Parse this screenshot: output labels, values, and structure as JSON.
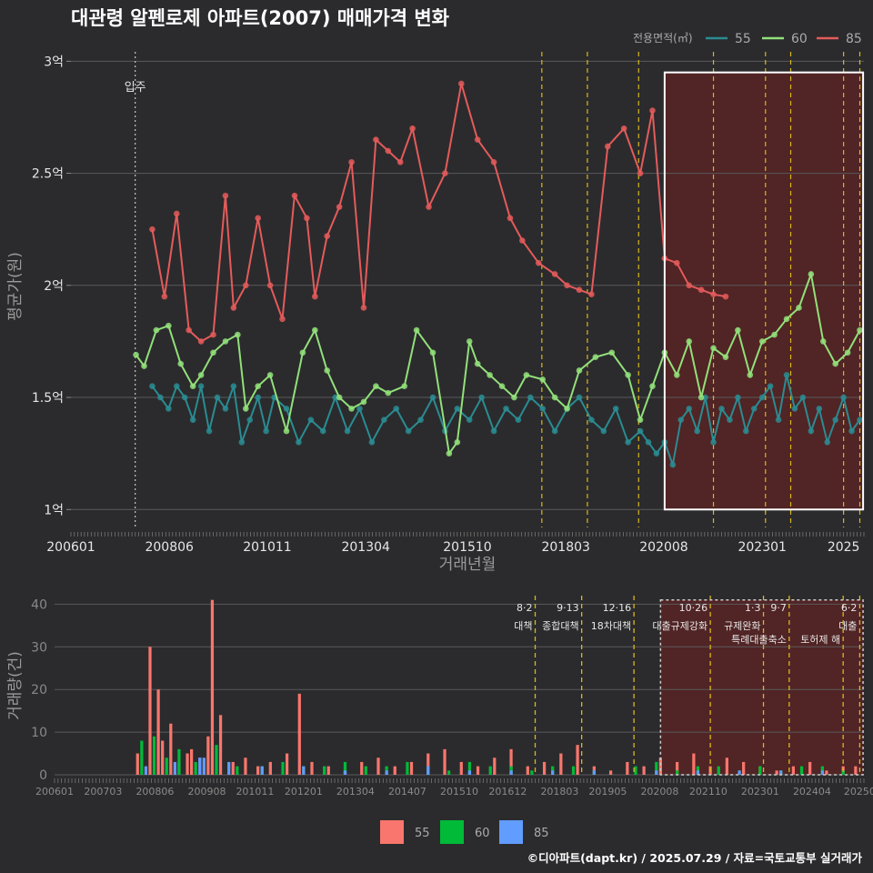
{
  "colors": {
    "bg": "#2b2b2d",
    "grid": "#5a5a5c",
    "s55": "#2a8c92",
    "s60": "#92e07a",
    "s85": "#e45b5b",
    "bar55": "#f8766d",
    "bar60": "#00ba38",
    "bar85": "#619cff",
    "policy": "#d8b81e",
    "shade": "#6b2020"
  },
  "header": {
    "title": "대관령 알펜로제 아파트(2007) 매매가격 변화"
  },
  "top_legend": {
    "title": "전용면적(㎡)",
    "items": [
      {
        "label": "55",
        "color": "#2a8c92"
      },
      {
        "label": "60",
        "color": "#92e07a"
      },
      {
        "label": "85",
        "color": "#e45b5b"
      }
    ]
  },
  "bottom_legend": {
    "items": [
      {
        "label": "55",
        "color": "#f8766d"
      },
      {
        "label": "60",
        "color": "#00ba38"
      },
      {
        "label": "85",
        "color": "#619cff"
      }
    ]
  },
  "footer": {
    "text": "©디아파트(dapt.kr) / 2025.07.29 / 자료=국토교통부 실거래가"
  },
  "chart_data": [
    {
      "type": "line",
      "title": "대관령 알펜로제 아파트(2007) 매매가격 변화",
      "xlabel": "거래년월",
      "ylabel": "평균가(원)",
      "x_range": [
        2006.0,
        2025.5
      ],
      "ylim": [
        0.92,
        3.05
      ],
      "y_unit": "억",
      "yticks": [
        {
          "v": 1,
          "label": "1억"
        },
        {
          "v": 1.5,
          "label": "1.5억"
        },
        {
          "v": 2,
          "label": "2억"
        },
        {
          "v": 2.5,
          "label": "2.5억"
        },
        {
          "v": 3,
          "label": "3억"
        }
      ],
      "xticks": [
        {
          "v": 2006.0,
          "label": "200601"
        },
        {
          "v": 2008.42,
          "label": "200806"
        },
        {
          "v": 2010.83,
          "label": "201011"
        },
        {
          "v": 2013.25,
          "label": "201304"
        },
        {
          "v": 2015.75,
          "label": "201510"
        },
        {
          "v": 2018.17,
          "label": "201803"
        },
        {
          "v": 2020.58,
          "label": "202008"
        },
        {
          "v": 2023.0,
          "label": "202301"
        },
        {
          "v": 2025.0,
          "label": "2025"
        }
      ],
      "move_in": {
        "x": 2007.58,
        "label": "입주"
      },
      "policy_lines": [
        2017.58,
        2018.7,
        2019.96,
        2021.8,
        2023.08,
        2023.7,
        2025.0,
        2025.4
      ],
      "highlight": {
        "x0": 2020.6,
        "x1": 2025.48,
        "y0": 1.0,
        "y1": 2.95
      },
      "series": [
        {
          "name": "55",
          "x": [
            2008.0,
            2008.2,
            2008.4,
            2008.6,
            2008.8,
            2009.0,
            2009.2,
            2009.4,
            2009.6,
            2009.8,
            2010.0,
            2010.2,
            2010.4,
            2010.6,
            2010.8,
            2011.0,
            2011.3,
            2011.6,
            2011.9,
            2012.2,
            2012.5,
            2012.8,
            2013.1,
            2013.4,
            2013.7,
            2014.0,
            2014.3,
            2014.6,
            2014.9,
            2015.2,
            2015.5,
            2015.8,
            2016.1,
            2016.4,
            2016.7,
            2017.0,
            2017.3,
            2017.6,
            2017.9,
            2018.2,
            2018.5,
            2018.8,
            2019.1,
            2019.4,
            2019.7,
            2020.0,
            2020.2,
            2020.4,
            2020.6,
            2020.8,
            2021.0,
            2021.2,
            2021.4,
            2021.6,
            2021.8,
            2022.0,
            2022.2,
            2022.4,
            2022.6,
            2022.8,
            2023.0,
            2023.2,
            2023.4,
            2023.6,
            2023.8,
            2024.0,
            2024.2,
            2024.4,
            2024.6,
            2024.8,
            2025.0,
            2025.2,
            2025.4
          ],
          "values": [
            1.55,
            1.5,
            1.45,
            1.55,
            1.5,
            1.4,
            1.55,
            1.35,
            1.5,
            1.45,
            1.55,
            1.3,
            1.4,
            1.5,
            1.35,
            1.5,
            1.45,
            1.3,
            1.4,
            1.35,
            1.5,
            1.35,
            1.45,
            1.3,
            1.4,
            1.45,
            1.35,
            1.4,
            1.5,
            1.35,
            1.45,
            1.4,
            1.5,
            1.35,
            1.45,
            1.4,
            1.5,
            1.45,
            1.35,
            1.45,
            1.5,
            1.4,
            1.35,
            1.45,
            1.3,
            1.35,
            1.3,
            1.25,
            1.3,
            1.2,
            1.4,
            1.45,
            1.35,
            1.5,
            1.3,
            1.45,
            1.4,
            1.5,
            1.35,
            1.45,
            1.5,
            1.55,
            1.4,
            1.6,
            1.45,
            1.5,
            1.35,
            1.45,
            1.3,
            1.4,
            1.5,
            1.35,
            1.4
          ]
        },
        {
          "name": "60",
          "x": [
            2007.6,
            2007.8,
            2008.1,
            2008.4,
            2008.7,
            2009.0,
            2009.2,
            2009.5,
            2009.8,
            2010.1,
            2010.3,
            2010.6,
            2010.9,
            2011.3,
            2011.7,
            2012.0,
            2012.3,
            2012.6,
            2012.9,
            2013.2,
            2013.5,
            2013.8,
            2014.2,
            2014.5,
            2014.9,
            2015.3,
            2015.5,
            2015.8,
            2016.0,
            2016.3,
            2016.6,
            2016.9,
            2017.2,
            2017.6,
            2017.9,
            2018.2,
            2018.5,
            2018.9,
            2019.3,
            2019.7,
            2020.0,
            2020.3,
            2020.6,
            2020.9,
            2021.2,
            2021.5,
            2021.8,
            2022.1,
            2022.4,
            2022.7,
            2023.0,
            2023.3,
            2023.6,
            2023.9,
            2024.2,
            2024.5,
            2024.8,
            2025.1,
            2025.4
          ],
          "values": [
            1.69,
            1.64,
            1.8,
            1.82,
            1.65,
            1.55,
            1.6,
            1.7,
            1.75,
            1.78,
            1.45,
            1.55,
            1.6,
            1.35,
            1.7,
            1.8,
            1.62,
            1.5,
            1.45,
            1.48,
            1.55,
            1.52,
            1.55,
            1.8,
            1.7,
            1.25,
            1.3,
            1.75,
            1.65,
            1.6,
            1.55,
            1.5,
            1.6,
            1.58,
            1.5,
            1.45,
            1.62,
            1.68,
            1.7,
            1.6,
            1.4,
            1.55,
            1.7,
            1.6,
            1.75,
            1.5,
            1.72,
            1.68,
            1.8,
            1.6,
            1.75,
            1.78,
            1.85,
            1.9,
            2.05,
            1.75,
            1.65,
            1.7,
            1.8
          ]
        },
        {
          "name": "85",
          "x": [
            2008.0,
            2008.3,
            2008.6,
            2008.9,
            2009.2,
            2009.5,
            2009.8,
            2010.0,
            2010.3,
            2010.6,
            2010.9,
            2011.2,
            2011.5,
            2011.8,
            2012.0,
            2012.3,
            2012.6,
            2012.9,
            2013.2,
            2013.5,
            2013.8,
            2014.1,
            2014.4,
            2014.8,
            2015.2,
            2015.6,
            2016.0,
            2016.4,
            2016.8,
            2017.1,
            2017.5,
            2017.9,
            2018.2,
            2018.5,
            2018.8,
            2019.2,
            2019.6,
            2020.0,
            2020.3,
            2020.6,
            2020.9,
            2021.2,
            2021.5,
            2021.8,
            2022.1
          ],
          "values": [
            2.25,
            1.95,
            2.32,
            1.8,
            1.75,
            1.78,
            2.4,
            1.9,
            2.0,
            2.3,
            2.0,
            1.85,
            2.4,
            2.3,
            1.95,
            2.22,
            2.35,
            2.55,
            1.9,
            2.65,
            2.6,
            2.55,
            2.7,
            2.35,
            2.5,
            2.9,
            2.65,
            2.55,
            2.3,
            2.2,
            2.1,
            2.05,
            2.0,
            1.98,
            1.96,
            2.62,
            2.7,
            2.5,
            2.78,
            2.12,
            2.1,
            2.0,
            1.98,
            1.96,
            1.95
          ]
        }
      ]
    },
    {
      "type": "bar",
      "xlabel": "",
      "ylabel": "거래량(건)",
      "x_range": [
        2006.0,
        2025.5
      ],
      "ylim": [
        0,
        42
      ],
      "yticks": [
        0,
        10,
        20,
        30,
        40
      ],
      "xticks": [
        {
          "v": 2006.0,
          "label": "200601"
        },
        {
          "v": 2007.17,
          "label": "200703"
        },
        {
          "v": 2008.42,
          "label": "200806"
        },
        {
          "v": 2009.67,
          "label": "200908"
        },
        {
          "v": 2010.83,
          "label": "201011"
        },
        {
          "v": 2012.0,
          "label": "201201"
        },
        {
          "v": 2013.25,
          "label": "201304"
        },
        {
          "v": 2014.5,
          "label": "201407"
        },
        {
          "v": 2015.75,
          "label": "201510"
        },
        {
          "v": 2016.92,
          "label": "201612"
        },
        {
          "v": 2018.17,
          "label": "201803"
        },
        {
          "v": 2019.33,
          "label": "201905"
        },
        {
          "v": 2020.58,
          "label": "202008"
        },
        {
          "v": 2021.75,
          "label": "202110"
        },
        {
          "v": 2023.0,
          "label": "202301"
        },
        {
          "v": 2024.25,
          "label": "202404"
        },
        {
          "v": 2025.4,
          "label": "20250"
        }
      ],
      "highlight": {
        "x0": 2020.6,
        "x1": 2025.48
      },
      "policies": [
        {
          "x": 2017.58,
          "date": "8·2",
          "name": "대책"
        },
        {
          "x": 2018.7,
          "date": "9·13",
          "name": "종합대책"
        },
        {
          "x": 2019.96,
          "date": "12·16",
          "name": "18차대책"
        },
        {
          "x": 2021.8,
          "date": "10·26",
          "name": "대출규제강화"
        },
        {
          "x": 2023.08,
          "date": "1·3",
          "name": "규제완화"
        },
        {
          "x": 2023.7,
          "date": "9·7",
          "name": "특례대출축소"
        },
        {
          "x": 2025.0,
          "date": "",
          "name": "토허제 해"
        },
        {
          "x": 2025.4,
          "date": "6·2",
          "name": "대출"
        }
      ],
      "series": [
        {
          "name": "55",
          "x": [
            2008.0,
            2008.3,
            2008.5,
            2008.6,
            2008.8,
            2009.0,
            2009.2,
            2009.3,
            2009.5,
            2009.7,
            2009.8,
            2010.0,
            2010.3,
            2010.6,
            2010.9,
            2011.2,
            2011.6,
            2011.9,
            2012.2,
            2012.6,
            2013.0,
            2013.4,
            2013.8,
            2014.2,
            2014.6,
            2015.0,
            2015.4,
            2015.8,
            2016.2,
            2016.6,
            2017.0,
            2017.4,
            2017.8,
            2018.2,
            2018.6,
            2019.0,
            2019.4,
            2019.8,
            2020.2,
            2020.6,
            2021.0,
            2021.4,
            2021.8,
            2022.2,
            2022.6,
            2023.0,
            2023.4,
            2023.8,
            2024.2,
            2024.6,
            2025.0,
            2025.3
          ],
          "values": [
            5,
            30,
            20,
            8,
            12,
            3,
            5,
            6,
            4,
            9,
            41,
            14,
            3,
            4,
            2,
            3,
            5,
            19,
            3,
            2,
            1,
            3,
            4,
            2,
            3,
            5,
            6,
            3,
            2,
            4,
            6,
            2,
            3,
            5,
            7,
            2,
            1,
            3,
            2,
            4,
            3,
            5,
            2,
            4,
            3,
            2,
            1,
            2,
            3,
            1,
            2,
            2
          ]
        },
        {
          "name": "60",
          "x": [
            2008.1,
            2008.4,
            2008.7,
            2009.0,
            2009.4,
            2009.9,
            2010.4,
            2011.0,
            2011.5,
            2012.0,
            2012.5,
            2013.0,
            2013.5,
            2014.0,
            2014.5,
            2015.0,
            2015.5,
            2016.0,
            2016.5,
            2017.0,
            2017.5,
            2018.0,
            2018.5,
            2019.0,
            2020.0,
            2020.5,
            2021.0,
            2021.5,
            2022.0,
            2022.5,
            2023.0,
            2023.5,
            2024.0,
            2024.5,
            2025.0
          ],
          "values": [
            8,
            9,
            4,
            6,
            3,
            7,
            2,
            2,
            3,
            2,
            2,
            3,
            2,
            2,
            3,
            2,
            1,
            3,
            2,
            2,
            1,
            2,
            2,
            1,
            2,
            3,
            1,
            2,
            2,
            1,
            2,
            1,
            2,
            2,
            1
          ]
        },
        {
          "name": "85",
          "x": [
            2008.2,
            2008.9,
            2009.5,
            2009.6,
            2010.2,
            2011.0,
            2012.0,
            2013.0,
            2014.0,
            2015.0,
            2016.0,
            2017.0,
            2018.0,
            2019.0,
            2020.5,
            2021.5,
            2022.5,
            2023.5,
            2024.5
          ],
          "values": [
            2,
            3,
            4,
            4,
            3,
            2,
            2,
            1,
            1,
            2,
            1,
            1,
            1,
            1,
            1,
            1,
            1,
            1,
            1
          ]
        }
      ]
    }
  ]
}
